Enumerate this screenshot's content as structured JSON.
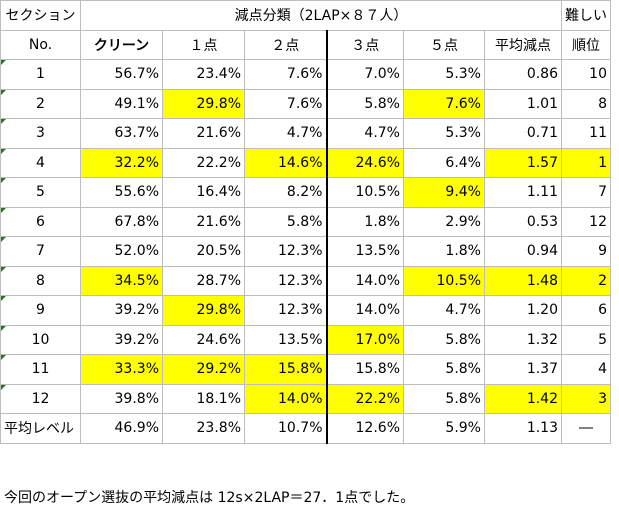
{
  "header1": {
    "section": "セクション",
    "group": "減点分類（2LAP×８７人）",
    "difficulty": "難しい"
  },
  "header2": {
    "no": "No.",
    "clean": "クリーン",
    "one": "１点",
    "two": "２点",
    "three": "３点",
    "five": "５点",
    "avg": "平均減点",
    "rank": "順位"
  },
  "rows": [
    {
      "no": "1",
      "clean": "56.7%",
      "one": "23.4%",
      "two": "7.6%",
      "three": "7.0%",
      "five": "5.3%",
      "avg": "0.86",
      "rank": "10",
      "hl": []
    },
    {
      "no": "2",
      "clean": "49.1%",
      "one": "29.8%",
      "two": "7.6%",
      "three": "5.8%",
      "five": "7.6%",
      "avg": "1.01",
      "rank": "8",
      "hl": [
        "one",
        "five"
      ]
    },
    {
      "no": "3",
      "clean": "63.7%",
      "one": "21.6%",
      "two": "4.7%",
      "three": "4.7%",
      "five": "5.3%",
      "avg": "0.71",
      "rank": "11",
      "hl": []
    },
    {
      "no": "4",
      "clean": "32.2%",
      "one": "22.2%",
      "two": "14.6%",
      "three": "24.6%",
      "five": "6.4%",
      "avg": "1.57",
      "rank": "1",
      "hl": [
        "clean",
        "two",
        "three",
        "avg",
        "rank"
      ]
    },
    {
      "no": "5",
      "clean": "55.6%",
      "one": "16.4%",
      "two": "8.2%",
      "three": "10.5%",
      "five": "9.4%",
      "avg": "1.11",
      "rank": "7",
      "hl": [
        "five"
      ]
    },
    {
      "no": "6",
      "clean": "67.8%",
      "one": "21.6%",
      "two": "5.8%",
      "three": "1.8%",
      "five": "2.9%",
      "avg": "0.53",
      "rank": "12",
      "hl": []
    },
    {
      "no": "7",
      "clean": "52.0%",
      "one": "20.5%",
      "two": "12.3%",
      "three": "13.5%",
      "five": "1.8%",
      "avg": "0.94",
      "rank": "9",
      "hl": []
    },
    {
      "no": "8",
      "clean": "34.5%",
      "one": "28.7%",
      "two": "12.3%",
      "three": "14.0%",
      "five": "10.5%",
      "avg": "1.48",
      "rank": "2",
      "hl": [
        "clean",
        "five",
        "avg",
        "rank"
      ]
    },
    {
      "no": "9",
      "clean": "39.2%",
      "one": "29.8%",
      "two": "12.3%",
      "three": "14.0%",
      "five": "4.7%",
      "avg": "1.20",
      "rank": "6",
      "hl": [
        "one"
      ]
    },
    {
      "no": "10",
      "clean": "39.2%",
      "one": "24.6%",
      "two": "13.5%",
      "three": "17.0%",
      "five": "5.8%",
      "avg": "1.32",
      "rank": "5",
      "hl": [
        "three"
      ]
    },
    {
      "no": "11",
      "clean": "33.3%",
      "one": "29.2%",
      "two": "15.8%",
      "three": "15.8%",
      "five": "5.8%",
      "avg": "1.37",
      "rank": "4",
      "hl": [
        "clean",
        "one",
        "two"
      ]
    },
    {
      "no": "12",
      "clean": "39.8%",
      "one": "18.1%",
      "two": "14.0%",
      "three": "22.2%",
      "five": "5.8%",
      "avg": "1.42",
      "rank": "3",
      "hl": [
        "two",
        "three",
        "avg",
        "rank"
      ]
    }
  ],
  "average": {
    "label": "平均レベル",
    "clean": "46.9%",
    "one": "23.8%",
    "two": "10.7%",
    "three": "12.6%",
    "five": "5.9%",
    "avg": "1.13",
    "rank": "―"
  },
  "footer_note": "今回のオープン選抜の平均減点は 12s×2LAP＝27．1点でした。",
  "colors": {
    "highlight": "#ffff00",
    "grid": "#bdbdbd",
    "marker": "#1f7a1f"
  }
}
